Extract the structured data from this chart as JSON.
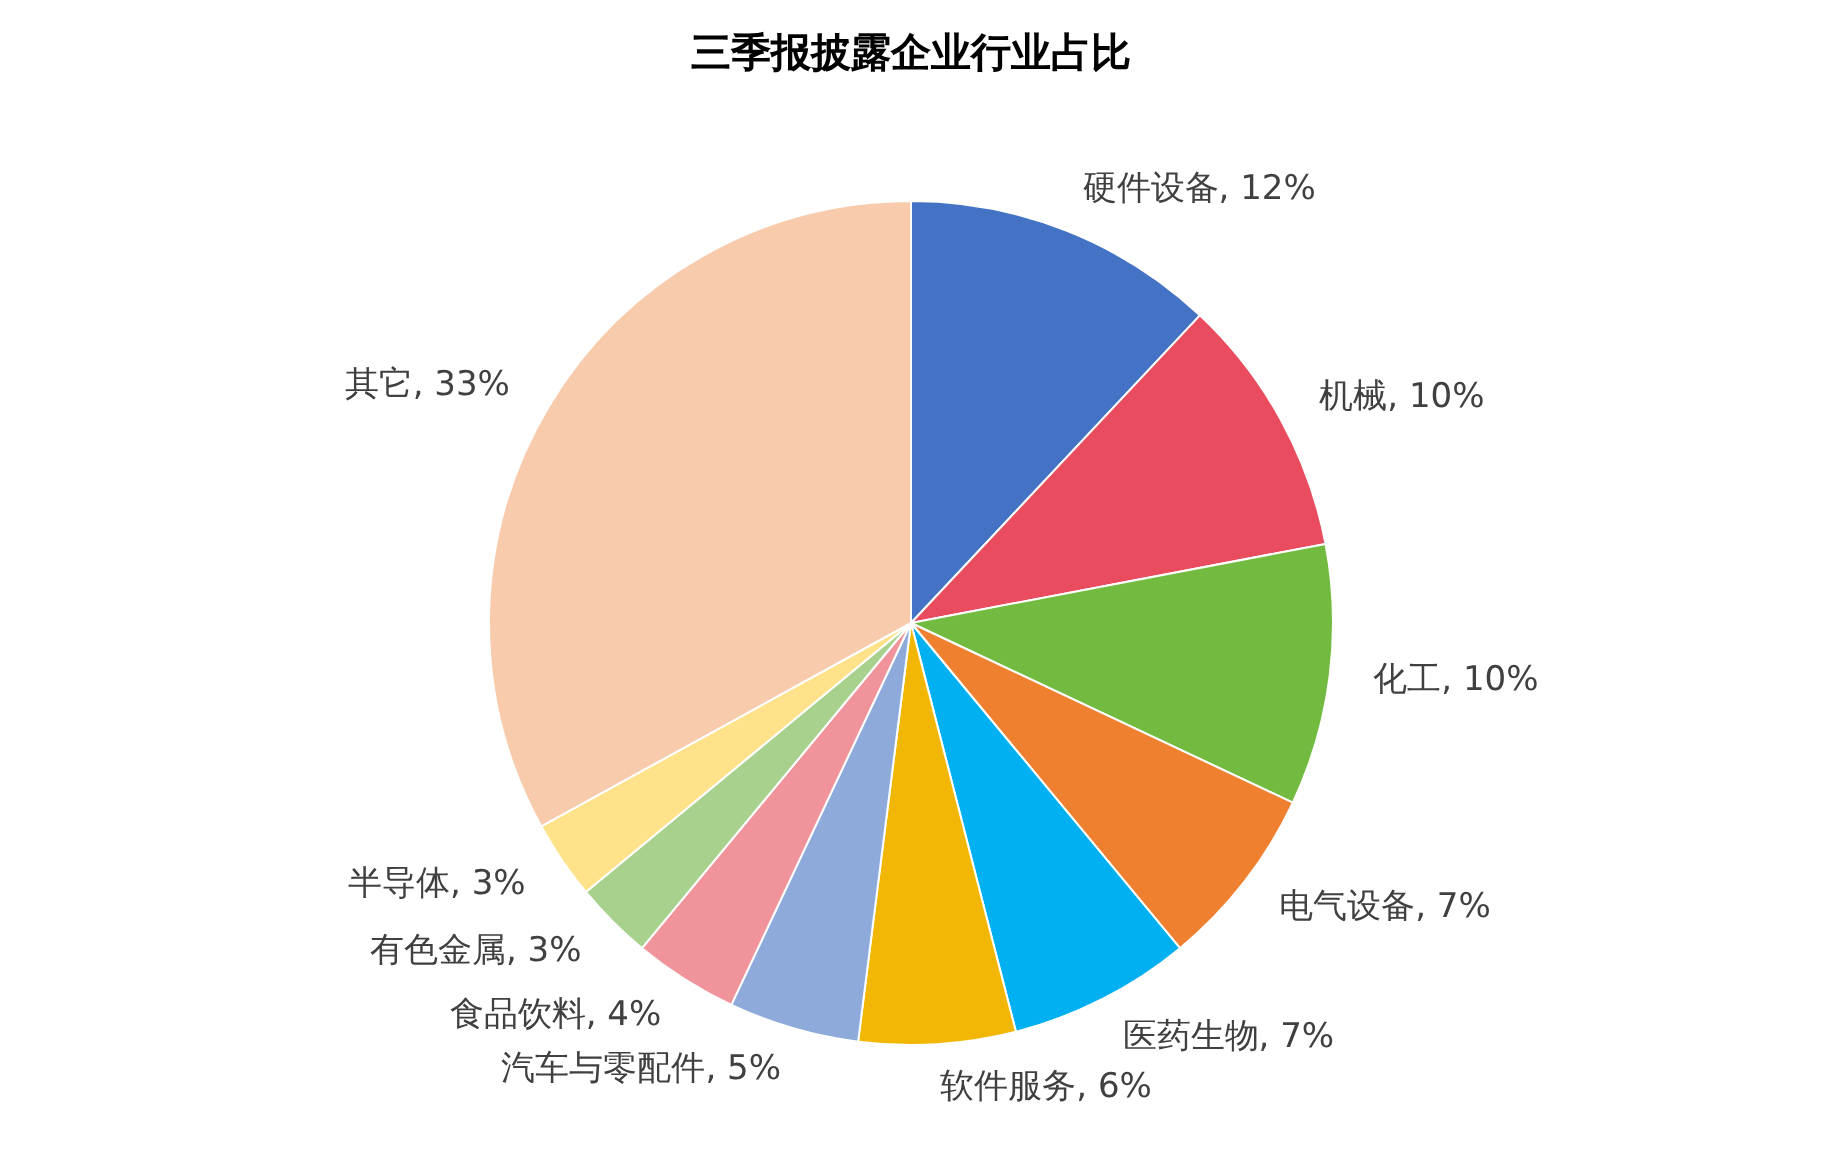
{
  "chart_data": {
    "type": "pie",
    "title": "三季报披露企业行业占比",
    "categories": [
      "硬件设备",
      "机械",
      "化工",
      "电气设备",
      "医药生物",
      "软件服务",
      "汽车与零配件",
      "食品饮料",
      "有色金属",
      "半导体",
      "其它"
    ],
    "values": [
      12,
      10,
      10,
      7,
      7,
      6,
      5,
      4,
      3,
      3,
      33
    ],
    "value_labels": [
      "12%",
      "10%",
      "10%",
      "7%",
      "7%",
      "6%",
      "5%",
      "4%",
      "3%",
      "3%",
      "33%"
    ],
    "colors": [
      "#4472c4",
      "#e84c5e",
      "#72bb40",
      "#ef8030",
      "#00b0f0",
      "#f2b705",
      "#8eaadb",
      "#f0939b",
      "#a9d18e",
      "#ffe28a",
      "#f7cbac"
    ],
    "legend": false
  }
}
